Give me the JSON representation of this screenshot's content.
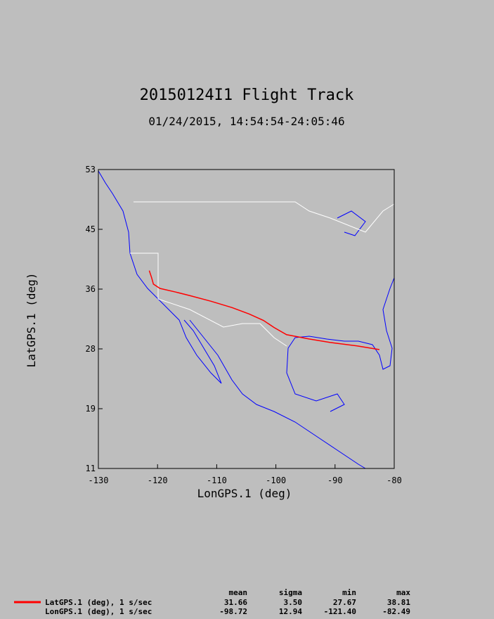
{
  "chart_data": {
    "type": "line",
    "title": "20150124I1 Flight Track",
    "subtitle": "01/24/2015, 14:54:54-24:05:46",
    "x_label": "LonGPS.1 (deg)",
    "y_label": "LatGPS.1 (deg)",
    "xlim": [
      -130,
      -80
    ],
    "ylim": [
      11,
      53
    ],
    "xticks": [
      -130,
      -120,
      -110,
      -100,
      -90,
      -80
    ],
    "yticks": [
      11,
      {
        "value": 19.4,
        "label": "19"
      },
      {
        "value": 27.8,
        "label": "28"
      },
      {
        "value": 36.2,
        "label": "36"
      },
      {
        "value": 44.6,
        "label": "45"
      },
      53
    ],
    "series": [
      {
        "name": "LatGPS.1 (deg), 1 s/sec",
        "color": "#ff0000",
        "x": [
          -121.4,
          -121.0,
          -120.7,
          -119.6,
          -117.0,
          -114.6,
          -111.0,
          -107.4,
          -104.5,
          -102.1,
          -100.3,
          -98.2,
          -94.4,
          -90.8,
          -86.1,
          -82.5
        ],
        "values": [
          38.8,
          37.8,
          36.9,
          36.3,
          35.8,
          35.3,
          34.5,
          33.6,
          32.7,
          31.8,
          30.8,
          29.8,
          29.2,
          28.7,
          28.2,
          27.7
        ]
      }
    ]
  },
  "stats": {
    "columns": [
      "mean",
      "sigma",
      "min",
      "max"
    ],
    "rows": [
      {
        "label": "LatGPS.1 (deg), 1 s/sec",
        "values": [
          "31.66",
          "3.50",
          "27.67",
          "38.81"
        ]
      },
      {
        "label": "LonGPS.1 (deg), 1 s/sec",
        "values": [
          "-98.72",
          "12.94",
          "-121.40",
          "-82.49"
        ]
      }
    ]
  }
}
